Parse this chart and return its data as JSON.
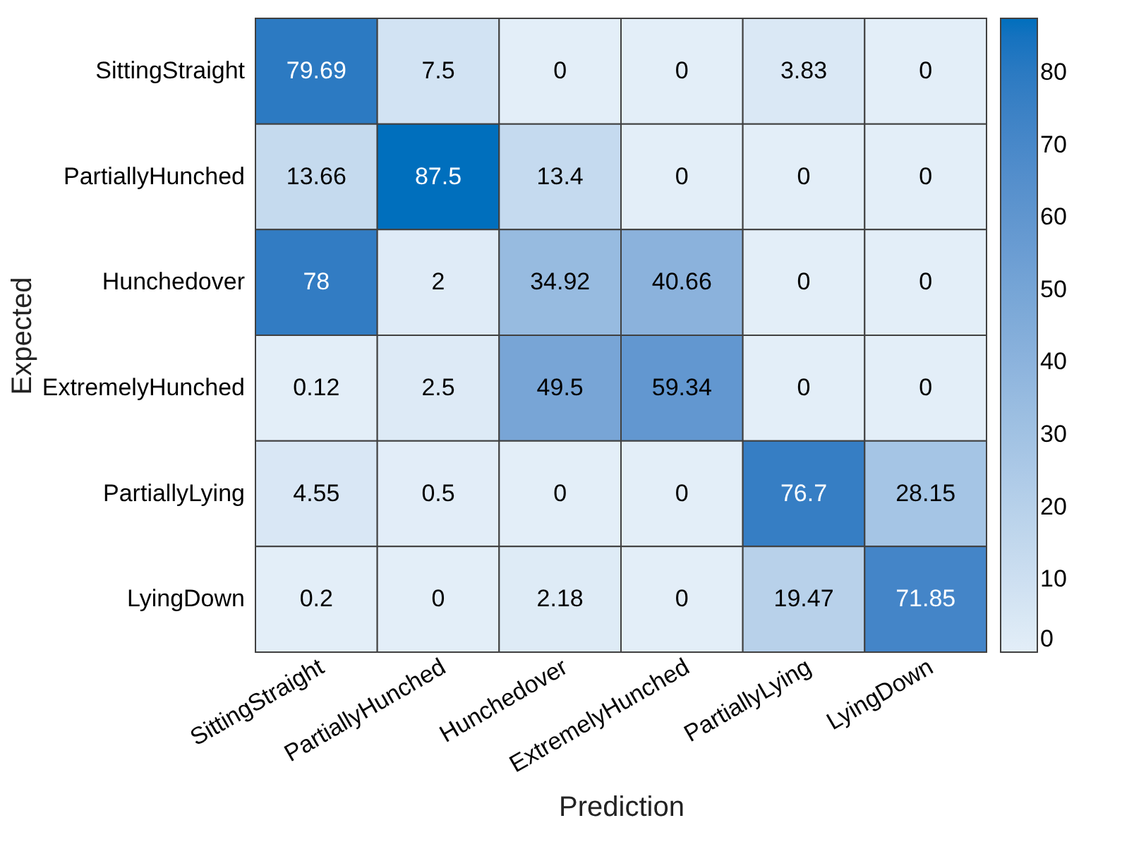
{
  "chart_data": {
    "type": "heatmap",
    "xlabel": "Prediction",
    "ylabel": "Expected",
    "categories": [
      "SittingStraight",
      "PartiallyHunched",
      "Hunchedover",
      "ExtremelyHunched",
      "PartiallyLying",
      "LyingDown"
    ],
    "y_categories": [
      "SittingStraight",
      "PartiallyHunched",
      "Hunchedover",
      "ExtremelyHunched",
      "PartiallyLying",
      "LyingDown"
    ],
    "cells": [
      [
        79.69,
        7.5,
        0,
        0,
        3.83,
        0
      ],
      [
        13.66,
        87.5,
        13.4,
        0,
        0,
        0
      ],
      [
        78,
        2,
        34.92,
        40.66,
        0,
        0
      ],
      [
        0.12,
        2.5,
        49.5,
        59.34,
        0,
        0
      ],
      [
        4.55,
        0.5,
        0,
        0,
        76.7,
        28.15
      ],
      [
        0.2,
        0,
        2.18,
        0,
        19.47,
        71.85
      ]
    ],
    "clim": [
      0,
      87.5
    ],
    "cticks": [
      0,
      10,
      20,
      30,
      40,
      50,
      60,
      70,
      80
    ],
    "data_labels": true
  }
}
